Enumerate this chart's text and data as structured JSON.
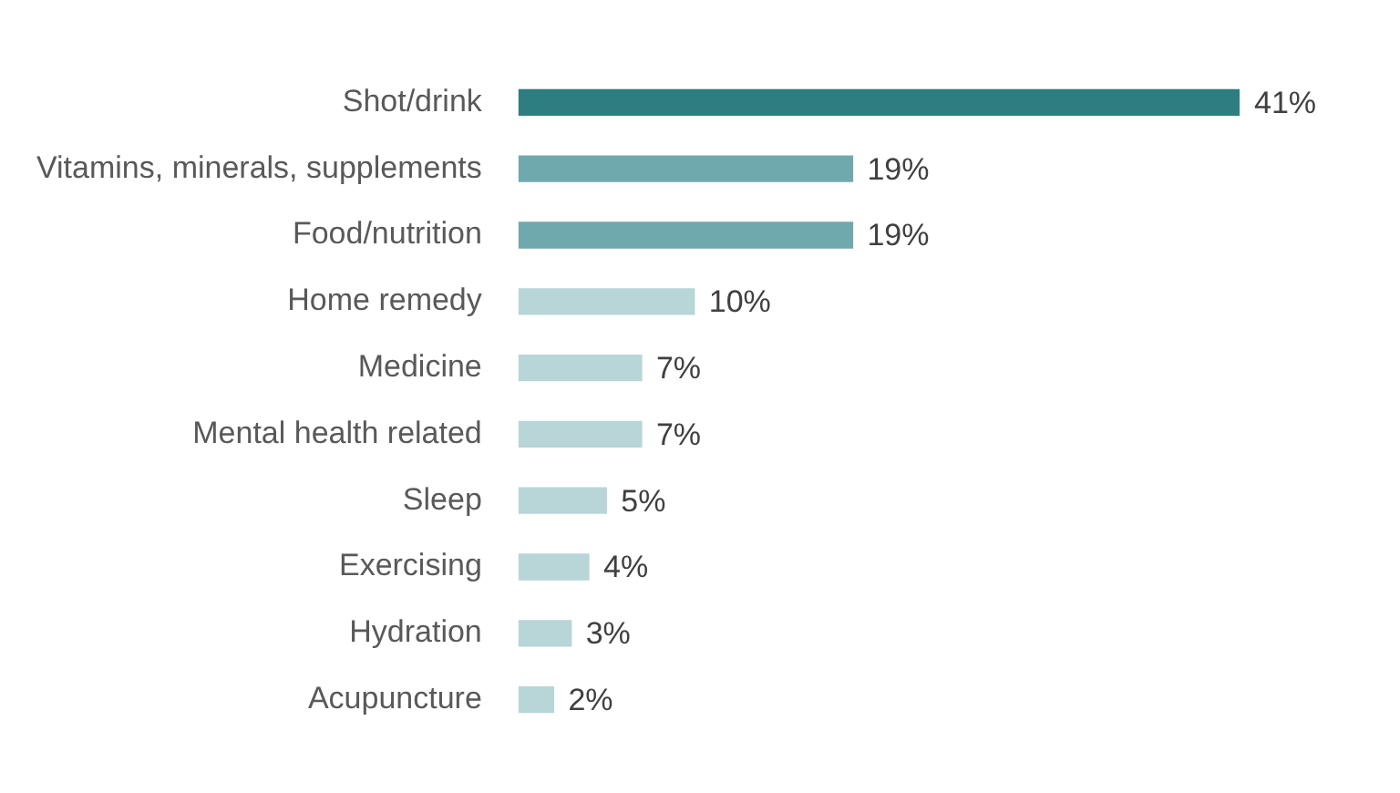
{
  "chart_data": {
    "type": "bar",
    "orientation": "horizontal",
    "categories": [
      "Shot/drink",
      "Vitamins, minerals, supplements",
      "Food/nutrition",
      "Home remedy",
      "Medicine",
      "Mental health related",
      "Sleep",
      "Exercising",
      "Hydration",
      "Acupuncture"
    ],
    "values": [
      41,
      19,
      19,
      10,
      7,
      7,
      5,
      4,
      3,
      2
    ],
    "colors": [
      "#2e7d80",
      "#70a9ad",
      "#70a9ad",
      "#b8d5d7",
      "#b8d5d7",
      "#b8d5d7",
      "#b8d5d7",
      "#b8d5d7",
      "#b8d5d7",
      "#b8d5d7"
    ],
    "value_labels": [
      "41%",
      "19%",
      "19%",
      "10%",
      "7%",
      "7%",
      "5%",
      "4%",
      "3%",
      "2%"
    ],
    "legend": false
  }
}
